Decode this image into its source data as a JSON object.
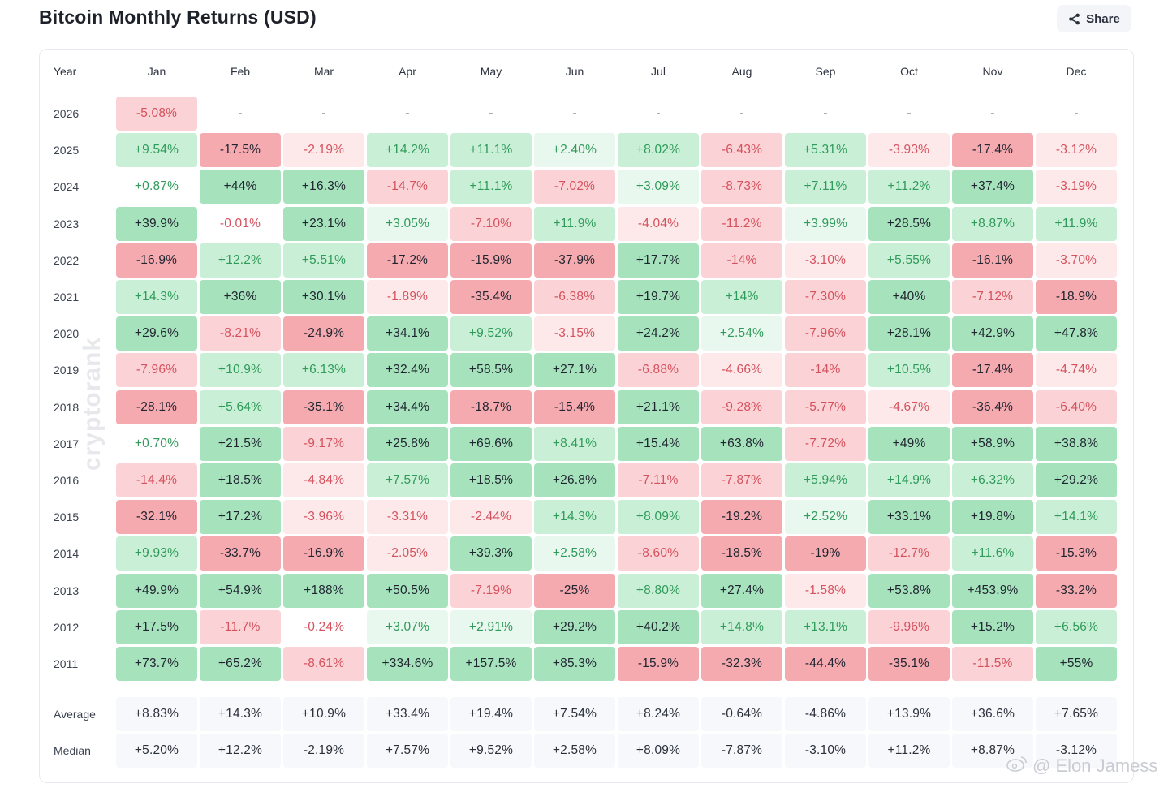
{
  "header": {
    "title": "Bitcoin Monthly Returns (USD)",
    "share_label": "Share"
  },
  "table": {
    "year_header": "Year",
    "average_label": "Average",
    "median_label": "Median"
  },
  "watermark": "cryptorank",
  "credit": "@ Elon Jamess",
  "colors": {
    "positive_light": "#e8f8ee",
    "positive_mid": "#c9f0d6",
    "positive_strong": "#a6e3bd",
    "negative_light": "#fde9ea",
    "negative_mid": "#fbd2d5",
    "negative_strong": "#f5aaaf",
    "positive_text": "#2f9a5a",
    "negative_text": "#d4525e",
    "strong_text": "#1f2430"
  },
  "chart_data": {
    "type": "heatmap",
    "title": "Bitcoin Monthly Returns (USD)",
    "columns": [
      "Jan",
      "Feb",
      "Mar",
      "Apr",
      "May",
      "Jun",
      "Jul",
      "Aug",
      "Sep",
      "Oct",
      "Nov",
      "Dec"
    ],
    "rows": [
      {
        "year": "2026",
        "cells": [
          "-5.08%",
          "-",
          "-",
          "-",
          "-",
          "-",
          "-",
          "-",
          "-",
          "-",
          "-",
          "-"
        ]
      },
      {
        "year": "2025",
        "cells": [
          "+9.54%",
          "-17.5%",
          "-2.19%",
          "+14.2%",
          "+11.1%",
          "+2.40%",
          "+8.02%",
          "-6.43%",
          "+5.31%",
          "-3.93%",
          "-17.4%",
          "-3.12%"
        ]
      },
      {
        "year": "2024",
        "cells": [
          "+0.87%",
          "+44%",
          "+16.3%",
          "-14.7%",
          "+11.1%",
          "-7.02%",
          "+3.09%",
          "-8.73%",
          "+7.11%",
          "+11.2%",
          "+37.4%",
          "-3.19%"
        ]
      },
      {
        "year": "2023",
        "cells": [
          "+39.9%",
          "-0.01%",
          "+23.1%",
          "+3.05%",
          "-7.10%",
          "+11.9%",
          "-4.04%",
          "-11.2%",
          "+3.99%",
          "+28.5%",
          "+8.87%",
          "+11.9%"
        ]
      },
      {
        "year": "2022",
        "cells": [
          "-16.9%",
          "+12.2%",
          "+5.51%",
          "-17.2%",
          "-15.9%",
          "-37.9%",
          "+17.7%",
          "-14%",
          "-3.10%",
          "+5.55%",
          "-16.1%",
          "-3.70%"
        ]
      },
      {
        "year": "2021",
        "cells": [
          "+14.3%",
          "+36%",
          "+30.1%",
          "-1.89%",
          "-35.4%",
          "-6.38%",
          "+19.7%",
          "+14%",
          "-7.30%",
          "+40%",
          "-7.12%",
          "-18.9%"
        ]
      },
      {
        "year": "2020",
        "cells": [
          "+29.6%",
          "-8.21%",
          "-24.9%",
          "+34.1%",
          "+9.52%",
          "-3.15%",
          "+24.2%",
          "+2.54%",
          "-7.96%",
          "+28.1%",
          "+42.9%",
          "+47.8%"
        ]
      },
      {
        "year": "2019",
        "cells": [
          "-7.96%",
          "+10.9%",
          "+6.13%",
          "+32.4%",
          "+58.5%",
          "+27.1%",
          "-6.88%",
          "-4.66%",
          "-14%",
          "+10.5%",
          "-17.4%",
          "-4.74%"
        ]
      },
      {
        "year": "2018",
        "cells": [
          "-28.1%",
          "+5.64%",
          "-35.1%",
          "+34.4%",
          "-18.7%",
          "-15.4%",
          "+21.1%",
          "-9.28%",
          "-5.77%",
          "-4.67%",
          "-36.4%",
          "-6.40%"
        ]
      },
      {
        "year": "2017",
        "cells": [
          "+0.70%",
          "+21.5%",
          "-9.17%",
          "+25.8%",
          "+69.6%",
          "+8.41%",
          "+15.4%",
          "+63.8%",
          "-7.72%",
          "+49%",
          "+58.9%",
          "+38.8%"
        ]
      },
      {
        "year": "2016",
        "cells": [
          "-14.4%",
          "+18.5%",
          "-4.84%",
          "+7.57%",
          "+18.5%",
          "+26.8%",
          "-7.11%",
          "-7.87%",
          "+5.94%",
          "+14.9%",
          "+6.32%",
          "+29.2%"
        ]
      },
      {
        "year": "2015",
        "cells": [
          "-32.1%",
          "+17.2%",
          "-3.96%",
          "-3.31%",
          "-2.44%",
          "+14.3%",
          "+8.09%",
          "-19.2%",
          "+2.52%",
          "+33.1%",
          "+19.8%",
          "+14.1%"
        ]
      },
      {
        "year": "2014",
        "cells": [
          "+9.93%",
          "-33.7%",
          "-16.9%",
          "-2.05%",
          "+39.3%",
          "+2.58%",
          "-8.60%",
          "-18.5%",
          "-19%",
          "-12.7%",
          "+11.6%",
          "-15.3%"
        ]
      },
      {
        "year": "2013",
        "cells": [
          "+49.9%",
          "+54.9%",
          "+188%",
          "+50.5%",
          "-7.19%",
          "-25%",
          "+8.80%",
          "+27.4%",
          "-1.58%",
          "+53.8%",
          "+453.9%",
          "-33.2%"
        ]
      },
      {
        "year": "2012",
        "cells": [
          "+17.5%",
          "-11.7%",
          "-0.24%",
          "+3.07%",
          "+2.91%",
          "+29.2%",
          "+40.2%",
          "+14.8%",
          "+13.1%",
          "-9.96%",
          "+15.2%",
          "+6.56%"
        ]
      },
      {
        "year": "2011",
        "cells": [
          "+73.7%",
          "+65.2%",
          "-8.61%",
          "+334.6%",
          "+157.5%",
          "+85.3%",
          "-15.9%",
          "-32.3%",
          "-44.4%",
          "-35.1%",
          "-11.5%",
          "+55%"
        ]
      }
    ],
    "average": [
      "+8.83%",
      "+14.3%",
      "+10.9%",
      "+33.4%",
      "+19.4%",
      "+7.54%",
      "+8.24%",
      "-0.64%",
      "-4.86%",
      "+13.9%",
      "+36.6%",
      "+7.65%"
    ],
    "median": [
      "+5.20%",
      "+12.2%",
      "-2.19%",
      "+7.57%",
      "+9.52%",
      "+2.58%",
      "+8.09%",
      "-7.87%",
      "-3.10%",
      "+11.2%",
      "+8.87%",
      "-3.12%"
    ]
  }
}
